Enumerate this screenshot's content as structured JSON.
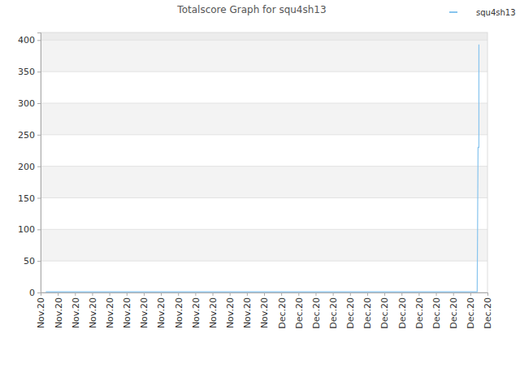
{
  "chart_data": {
    "type": "line",
    "title": "Totalscore Graph for squ4sh13",
    "x": [
      0.3,
      25.4,
      25.45,
      25.5,
      25.5
    ],
    "series": [
      {
        "name": "squ4sh13",
        "color": "#87c4ee",
        "values": [
          1,
          1,
          230,
          230,
          393
        ]
      }
    ],
    "xlim": [
      0,
      26
    ],
    "xticks": [
      {
        "value": 0,
        "label": "Nov.20"
      },
      {
        "value": 1,
        "label": "Nov.20"
      },
      {
        "value": 2,
        "label": "Nov.20"
      },
      {
        "value": 3,
        "label": "Nov.20"
      },
      {
        "value": 4,
        "label": "Nov.20"
      },
      {
        "value": 5,
        "label": "Nov.20"
      },
      {
        "value": 6,
        "label": "Nov.20"
      },
      {
        "value": 7,
        "label": "Nov.20"
      },
      {
        "value": 8,
        "label": "Nov.20"
      },
      {
        "value": 9,
        "label": "Nov.20"
      },
      {
        "value": 10,
        "label": "Nov.20"
      },
      {
        "value": 11,
        "label": "Nov.20"
      },
      {
        "value": 12,
        "label": "Nov.20"
      },
      {
        "value": 13,
        "label": "Nov.20"
      },
      {
        "value": 14,
        "label": "Dec.20"
      },
      {
        "value": 15,
        "label": "Dec.20"
      },
      {
        "value": 16,
        "label": "Dec.20"
      },
      {
        "value": 17,
        "label": "Dec.20"
      },
      {
        "value": 18,
        "label": "Dec.20"
      },
      {
        "value": 19,
        "label": "Dec.20"
      },
      {
        "value": 20,
        "label": "Dec.20"
      },
      {
        "value": 21,
        "label": "Dec.20"
      },
      {
        "value": 22,
        "label": "Dec.20"
      },
      {
        "value": 23,
        "label": "Dec.20"
      },
      {
        "value": 24,
        "label": "Dec.20"
      },
      {
        "value": 25,
        "label": "Dec.20"
      },
      {
        "value": 26,
        "label": "Dec.20"
      }
    ],
    "ylim": [
      0,
      412
    ],
    "yticks": [
      0,
      50,
      100,
      150,
      200,
      250,
      300,
      350,
      400
    ],
    "grid": true,
    "legend": "top right"
  }
}
